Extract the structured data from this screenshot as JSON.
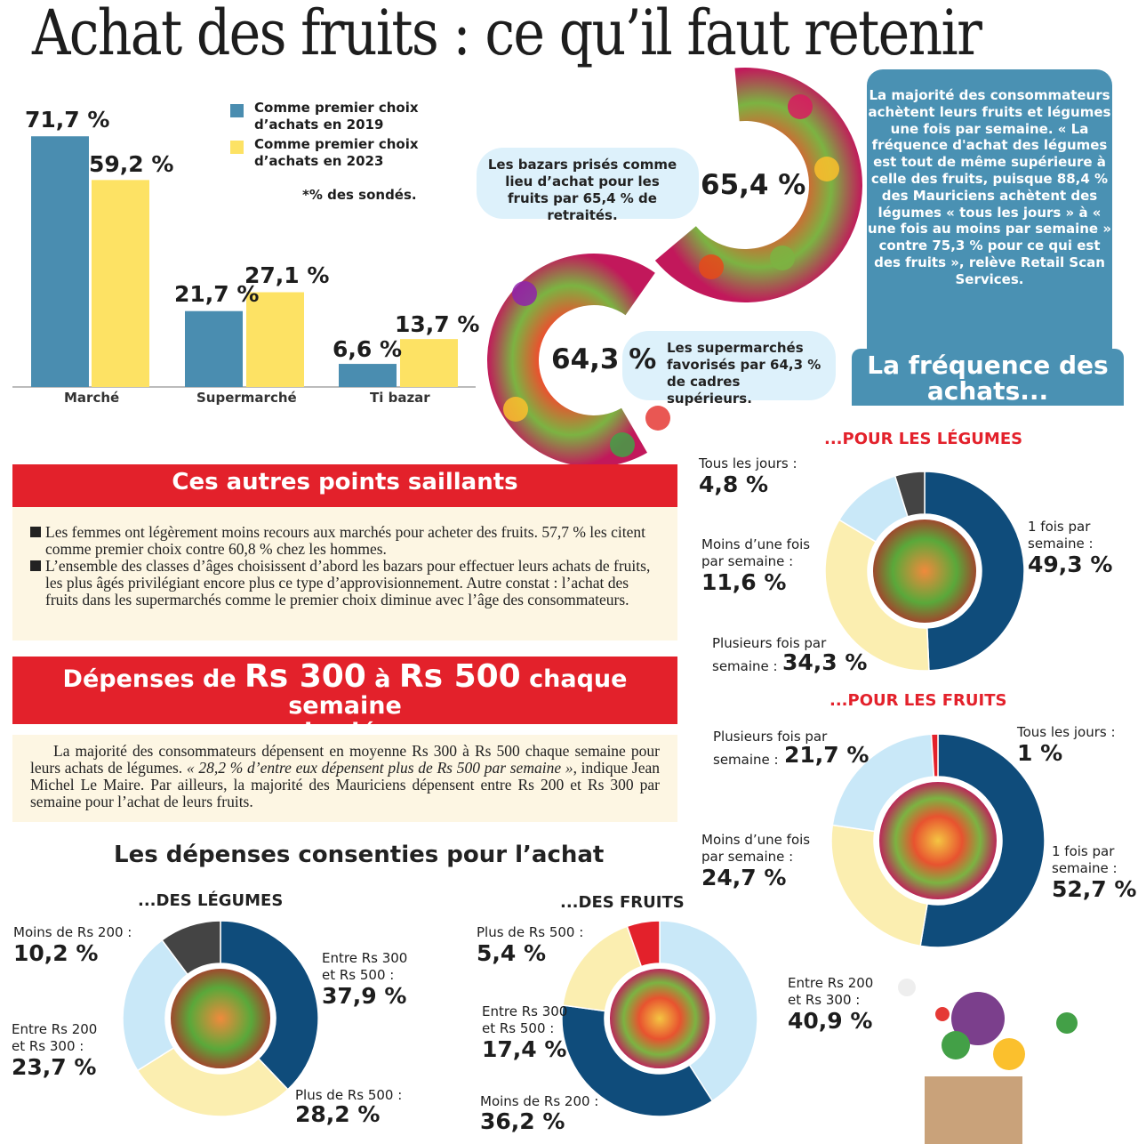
{
  "title": "Achat des fruits : ce qu’il faut retenir",
  "colors": {
    "blue": "#4a8db0",
    "yellow": "#fde264",
    "dark_blue": "#0f4c7b",
    "light_blue": "#c9e8f8",
    "pale_yellow": "#fbeeb0",
    "gray": "#444444",
    "red": "#e3212b"
  },
  "bar_chart": {
    "legend": [
      "Comme premier choix d’achats en 2019",
      "Comme premier choix d’achats en 2023"
    ],
    "note": "*% des sondés.",
    "value_labels": [
      [
        "71,7 %",
        "59,2 %"
      ],
      [
        "21,7 %",
        "27,1 %"
      ],
      [
        "6,6 %",
        "13,7 %"
      ]
    ]
  },
  "bubbles": {
    "bazars_text": "Les bazars prisés comme lieu d’achat pour les fruits par 65,4 % de retraités.",
    "bazars_value": "65,4 %",
    "super_text": "Les supermarchés favorisés par 64,3 % de cadres supérieurs.",
    "super_value": "64,3 %"
  },
  "frequency_box": {
    "text": "La majorité des consommateurs achètent leurs fruits et légumes une fois par semaine. « La fréquence d'achat des légumes est tout de même supérieure à celle des fruits, puisque 88,4 % des Mauriciens achètent des légumes « tous les jours » à « une fois au moins par semaine » contre 75,3 % pour ce qui est des fruits », relève Retail Scan Services.",
    "banner": "La fréquence des achats..."
  },
  "points": {
    "title": "Ces autres points saillants",
    "items": [
      "Les femmes ont légèrement moins recours aux marchés pour acheter des fruits. 57,7 % les citent comme premier choix contre 60,8 % chez les hommes.",
      "L’ensemble des classes d’âges choisissent d’abord les bazars pour effectuer leurs achats de fruits, les plus âgés privilégiant encore plus ce type d’approvisionnement. Autre constat : l’achat des fruits dans les supermarchés comme le premier choix diminue avec l’âge des consommateurs."
    ]
  },
  "depenses": {
    "title_a": "Dépenses de ",
    "title_b": "Rs 300",
    "title_c": " à ",
    "title_d": "Rs 500",
    "title_e": " chaque semaine",
    "title_line2": "pour des légumes",
    "p1": "La majorité des consommateurs dépensent en moyenne Rs 300 à Rs 500 chaque semaine pour leurs achats de légumes. ",
    "p_quote": "« 28,2 % d’entre eux dépensent plus de Rs 500 par semaine »",
    "p2": ", indique Jean Michel Le Maire. Par ailleurs, la majorité des Mauriciens dépensent entre Rs 200 et Rs 300 par semaine pour l’achat de leurs fruits."
  },
  "spend_title": "Les dépenses consenties pour l’achat",
  "chart_data": [
    {
      "type": "bar",
      "categories": [
        "Marché",
        "Supermarché",
        "Ti bazar"
      ],
      "series": [
        {
          "name": "Comme premier choix d’achats en 2019",
          "values": [
            71.7,
            21.7,
            6.6
          ]
        },
        {
          "name": "Comme premier choix d’achats en 2023",
          "values": [
            59.2,
            27.1,
            13.7
          ]
        }
      ],
      "unit": "%"
    },
    {
      "type": "pie",
      "title": "...POUR LES LÉGUMES",
      "slices": [
        {
          "label": "1 fois par semaine :",
          "value": 49.3,
          "text": "49,3 %",
          "color": "dark_blue"
        },
        {
          "label": "Plusieurs fois par semaine :",
          "value": 34.3,
          "text": "34,3 %",
          "color": "pale_yellow"
        },
        {
          "label": "Moins d’une fois par semaine :",
          "value": 11.6,
          "text": "11,6 %",
          "color": "light_blue"
        },
        {
          "label": "Tous les jours :",
          "value": 4.8,
          "text": "4,8 %",
          "color": "gray"
        }
      ]
    },
    {
      "type": "pie",
      "title": "...POUR LES FRUITS",
      "slices": [
        {
          "label": "1 fois par semaine :",
          "value": 52.7,
          "text": "52,7 %",
          "color": "dark_blue"
        },
        {
          "label": "Moins d’une fois par semaine :",
          "value": 24.7,
          "text": "24,7 %",
          "color": "pale_yellow"
        },
        {
          "label": "Plusieurs fois par semaine :",
          "value": 21.7,
          "text": "21,7 %",
          "color": "light_blue"
        },
        {
          "label": "Tous les jours :",
          "value": 1,
          "text": "1 %",
          "color": "red"
        }
      ]
    },
    {
      "type": "pie",
      "title": "...DES LÉGUMES",
      "slices": [
        {
          "label": "Entre Rs 300 et Rs 500 :",
          "value": 37.9,
          "text": "37,9 %",
          "color": "dark_blue"
        },
        {
          "label": "Plus de Rs 500 :",
          "value": 28.2,
          "text": "28,2 %",
          "color": "pale_yellow"
        },
        {
          "label": "Entre Rs 200 et Rs 300 :",
          "value": 23.7,
          "text": "23,7 %",
          "color": "light_blue"
        },
        {
          "label": "Moins de Rs 200 :",
          "value": 10.2,
          "text": "10,2 %",
          "color": "gray"
        }
      ]
    },
    {
      "type": "pie",
      "title": "...DES FRUITS",
      "slices": [
        {
          "label": "Entre Rs 200 et Rs 300 :",
          "value": 40.9,
          "text": "40,9 %",
          "color": "light_blue"
        },
        {
          "label": "Moins de Rs 200 :",
          "value": 36.2,
          "text": "36,2 %",
          "color": "dark_blue"
        },
        {
          "label": "Entre Rs 300 et Rs 500 :",
          "value": 17.4,
          "text": "17,4 %",
          "color": "pale_yellow"
        },
        {
          "label": "Plus de Rs 500 :",
          "value": 5.4,
          "text": "5,4 %",
          "color": "red"
        }
      ]
    }
  ]
}
